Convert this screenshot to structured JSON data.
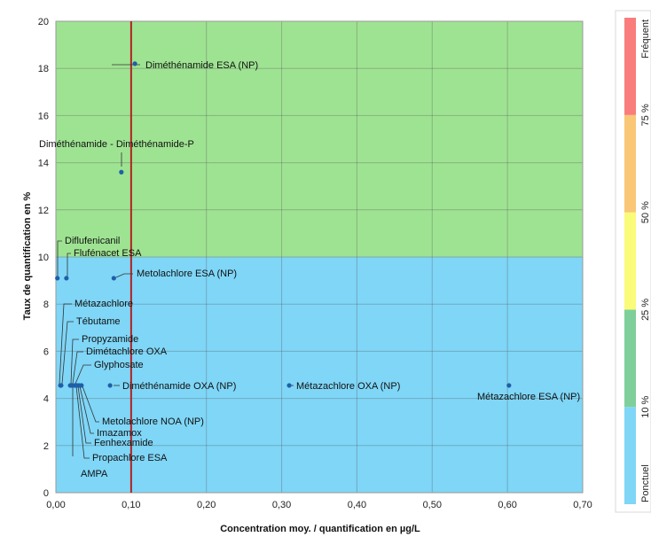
{
  "chart_data": {
    "type": "scatter",
    "xlabel": "Concentration moy. / quantification en µg/L",
    "ylabel": "Taux de quantification en %",
    "xlim": [
      0,
      0.7
    ],
    "ylim": [
      0,
      20
    ],
    "x_ticks": [
      "0,00",
      "0,10",
      "0,20",
      "0,30",
      "0,40",
      "0,50",
      "0,60",
      "0,70"
    ],
    "y_ticks": [
      "0",
      "2",
      "4",
      "6",
      "8",
      "10",
      "12",
      "14",
      "16",
      "18",
      "20"
    ],
    "grid": true,
    "background_zones": [
      {
        "from": 0,
        "to": 10,
        "color": "#7fd6f7"
      },
      {
        "from": 10,
        "to": 20,
        "color": "#9ee392"
      }
    ],
    "reference_line": {
      "x": 0.1,
      "color": "#b22222"
    },
    "points": [
      {
        "label": "Diméthénamide ESA (NP)",
        "x": 0.105,
        "y": 18.2
      },
      {
        "label": "Diméthénamide - Diméthénamide-P",
        "x": 0.087,
        "y": 13.6
      },
      {
        "label": "Diflufenicanil",
        "x": 0.002,
        "y": 9.1
      },
      {
        "label": "Flufénacet ESA",
        "x": 0.014,
        "y": 9.1
      },
      {
        "label": "Metolachlore ESA (NP)",
        "x": 0.077,
        "y": 9.1
      },
      {
        "label": "Métazachlore",
        "x": 0.006,
        "y": 4.55
      },
      {
        "label": "Tébutame",
        "x": 0.007,
        "y": 4.55
      },
      {
        "label": "Propyzamide",
        "x": 0.019,
        "y": 4.55
      },
      {
        "label": "Dimétachlore OXA",
        "x": 0.022,
        "y": 4.55
      },
      {
        "label": "Glyphosate",
        "x": 0.025,
        "y": 4.55
      },
      {
        "label": "Diméthénamide OXA (NP)",
        "x": 0.072,
        "y": 4.55
      },
      {
        "label": "Métazachlore OXA (NP)",
        "x": 0.31,
        "y": 4.55
      },
      {
        "label": "Métazachlore ESA (NP)",
        "x": 0.602,
        "y": 4.55
      },
      {
        "label": "Metolachlore NOA (NP)",
        "x": 0.034,
        "y": 4.55
      },
      {
        "label": "Imazamox",
        "x": 0.031,
        "y": 4.55
      },
      {
        "label": "Fenhexamide",
        "x": 0.029,
        "y": 4.55
      },
      {
        "label": "Propachlore ESA",
        "x": 0.027,
        "y": 4.55
      },
      {
        "label": "AMPA",
        "x": 0.021,
        "y": 4.55
      }
    ],
    "point_color": "#1f5fa8",
    "frequency_legend": {
      "bands": [
        {
          "color": "#7fd6f7"
        },
        {
          "color": "#7fcf9a"
        },
        {
          "color": "#fbfb7a"
        },
        {
          "color": "#f9c776"
        },
        {
          "color": "#f97d7d"
        }
      ],
      "labels": [
        "Ponctuel",
        "10 %",
        "25 %",
        "50 %",
        "75 %",
        "Fréquent"
      ]
    }
  }
}
